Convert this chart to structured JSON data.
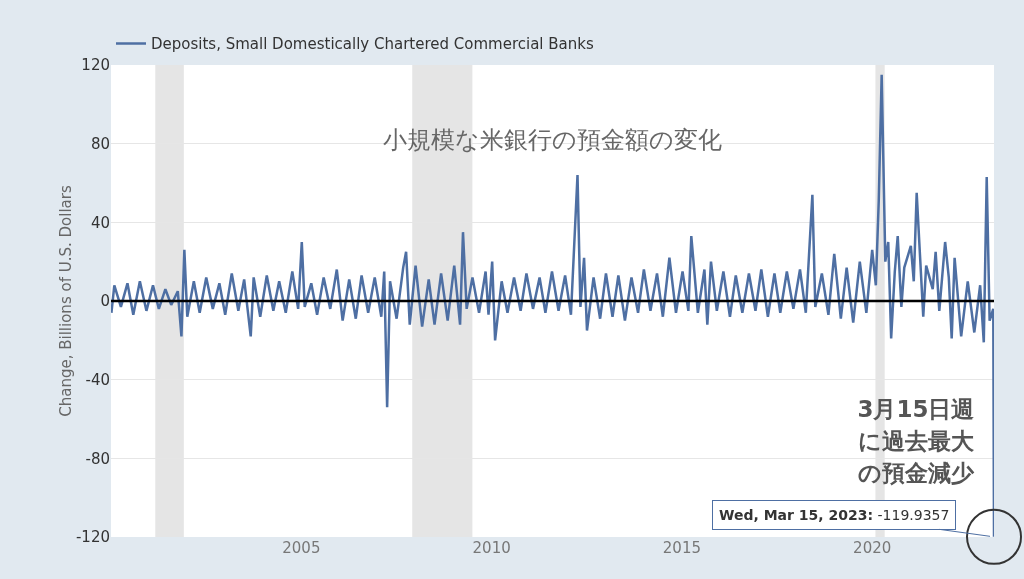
{
  "chart_data": {
    "type": "line",
    "title": "小規模な米銀行の預金額の変化",
    "ylabel": "Change, Billions of U.S. Dollars",
    "xlim": [
      "2000-01-01",
      "2023-03-15"
    ],
    "xticks": [
      {
        "value": "2005-01-01",
        "label": "2005"
      },
      {
        "value": "2010-01-01",
        "label": "2010"
      },
      {
        "value": "2015-01-01",
        "label": "2015"
      },
      {
        "value": "2020-01-01",
        "label": "2020"
      }
    ],
    "ylim": [
      -120,
      120
    ],
    "yticks": [
      -120,
      -80,
      -40,
      0,
      40,
      80,
      120
    ],
    "grid": "y",
    "legend": "top",
    "marker": "none",
    "line_style": "solid",
    "bands": [
      {
        "axis": "x",
        "from": "2001-03-01",
        "to": "2001-11-30",
        "color": "#e5e5e5"
      },
      {
        "axis": "x",
        "from": "2007-12-01",
        "to": "2009-06-30",
        "color": "#e5e5e5"
      },
      {
        "axis": "x",
        "from": "2020-02-01",
        "to": "2020-04-30",
        "color": "#e5e5e5"
      }
    ],
    "ref_lines": [
      {
        "axis": "y",
        "value": 0,
        "color": "#000000"
      }
    ],
    "annotations": [
      "3月15日週に過去最大の預金減少",
      {
        "text": "Wed, Mar 15, 2023: -119.9357",
        "x": "2023-03-15",
        "y": -119.9357
      }
    ],
    "series": [
      {
        "name": "Deposits, Small Domestically Chartered Commercial Banks",
        "color": "#4e6fa3",
        "x": [
          "2000-01-05",
          "2000-02-02",
          "2000-04-05",
          "2000-06-07",
          "2000-08-02",
          "2000-10-04",
          "2000-12-06",
          "2001-02-07",
          "2001-04-04",
          "2001-06-06",
          "2001-08-01",
          "2001-10-03",
          "2001-11-07",
          "2001-12-05",
          "2002-01-02",
          "2002-03-06",
          "2002-05-01",
          "2002-07-03",
          "2002-09-04",
          "2002-11-06",
          "2003-01-01",
          "2003-03-05",
          "2003-05-07",
          "2003-07-02",
          "2003-09-03",
          "2003-10-01",
          "2003-12-03",
          "2004-02-04",
          "2004-04-07",
          "2004-06-02",
          "2004-08-04",
          "2004-10-06",
          "2004-12-01",
          "2005-01-05",
          "2005-02-02",
          "2005-04-06",
          "2005-06-01",
          "2005-08-03",
          "2005-10-05",
          "2005-12-07",
          "2006-02-01",
          "2006-04-05",
          "2006-06-07",
          "2006-08-02",
          "2006-10-04",
          "2006-12-06",
          "2007-02-07",
          "2007-03-07",
          "2007-04-04",
          "2007-05-02",
          "2007-07-04",
          "2007-09-05",
          "2007-10-03",
          "2007-11-07",
          "2008-01-02",
          "2008-03-05",
          "2008-05-07",
          "2008-07-02",
          "2008-09-03",
          "2008-11-05",
          "2009-01-07",
          "2009-03-04",
          "2009-04-01",
          "2009-05-06",
          "2009-07-01",
          "2009-09-02",
          "2009-11-04",
          "2009-12-02",
          "2010-01-06",
          "2010-02-03",
          "2010-04-07",
          "2010-06-02",
          "2010-08-04",
          "2010-10-06",
          "2010-12-01",
          "2011-02-02",
          "2011-04-06",
          "2011-06-01",
          "2011-08-03",
          "2011-10-05",
          "2011-12-07",
          "2012-02-01",
          "2012-04-04",
          "2012-05-02",
          "2012-06-06",
          "2012-07-04",
          "2012-09-05",
          "2012-11-07",
          "2013-01-02",
          "2013-03-06",
          "2013-05-01",
          "2013-07-03",
          "2013-09-04",
          "2013-11-06",
          "2014-01-01",
          "2014-03-05",
          "2014-05-07",
          "2014-07-02",
          "2014-09-03",
          "2014-11-05",
          "2015-01-07",
          "2015-03-04",
          "2015-04-01",
          "2015-06-03",
          "2015-08-05",
          "2015-09-02",
          "2015-10-07",
          "2015-12-02",
          "2016-02-03",
          "2016-04-06",
          "2016-06-01",
          "2016-08-03",
          "2016-10-05",
          "2016-12-07",
          "2017-02-01",
          "2017-04-05",
          "2017-06-07",
          "2017-08-02",
          "2017-10-04",
          "2017-12-06",
          "2018-02-07",
          "2018-04-04",
          "2018-06-06",
          "2018-07-04",
          "2018-09-05",
          "2018-11-07",
          "2019-01-02",
          "2019-03-06",
          "2019-05-01",
          "2019-07-03",
          "2019-09-04",
          "2019-11-06",
          "2020-01-01",
          "2020-02-05",
          "2020-03-04",
          "2020-04-01",
          "2020-05-06",
          "2020-06-03",
          "2020-07-01",
          "2020-08-05",
          "2020-09-02",
          "2020-10-07",
          "2020-11-04",
          "2021-01-06",
          "2021-02-03",
          "2021-03-03",
          "2021-04-07",
          "2021-05-05",
          "2021-06-02",
          "2021-08-04",
          "2021-09-01",
          "2021-10-06",
          "2021-12-01",
          "2022-01-05",
          "2022-02-02",
          "2022-03-02",
          "2022-05-04",
          "2022-07-06",
          "2022-09-07",
          "2022-11-02",
          "2022-12-07",
          "2023-01-04",
          "2023-02-01",
          "2023-03-08",
          "2023-03-15"
        ],
        "values": [
          -6,
          8,
          -3,
          9,
          -7,
          10,
          -5,
          8,
          -4,
          6,
          -2,
          5,
          -18,
          26,
          -8,
          10,
          -6,
          12,
          -4,
          9,
          -7,
          14,
          -5,
          11,
          -18,
          12,
          -8,
          13,
          -5,
          10,
          -6,
          15,
          -4,
          30,
          -3,
          9,
          -7,
          12,
          -4,
          16,
          -10,
          11,
          -9,
          13,
          -6,
          12,
          -8,
          15,
          -54,
          10,
          -9,
          17,
          25,
          -12,
          18,
          -13,
          11,
          -12,
          14,
          -10,
          18,
          -12,
          35,
          -4,
          12,
          -6,
          15,
          -7,
          20,
          -20,
          10,
          -6,
          12,
          -5,
          14,
          -4,
          12,
          -6,
          15,
          -5,
          13,
          -7,
          64,
          -3,
          22,
          -15,
          12,
          -9,
          14,
          -8,
          13,
          -10,
          12,
          -6,
          16,
          -5,
          14,
          -8,
          22,
          -6,
          15,
          -5,
          33,
          -6,
          16,
          -12,
          20,
          -5,
          15,
          -8,
          13,
          -6,
          14,
          -5,
          16,
          -8,
          14,
          -6,
          15,
          -4,
          16,
          -6,
          54,
          -3,
          14,
          -7,
          24,
          -9,
          17,
          -11,
          20,
          -6,
          26,
          8,
          51,
          115,
          20,
          30,
          -19,
          15,
          33,
          -3,
          17,
          28,
          10,
          55,
          20,
          -8,
          18,
          6,
          25,
          -5,
          30,
          12,
          -19,
          22,
          -18,
          10,
          -16,
          8,
          -21,
          63,
          -10,
          -4,
          -119.9357
        ]
      }
    ]
  }
}
